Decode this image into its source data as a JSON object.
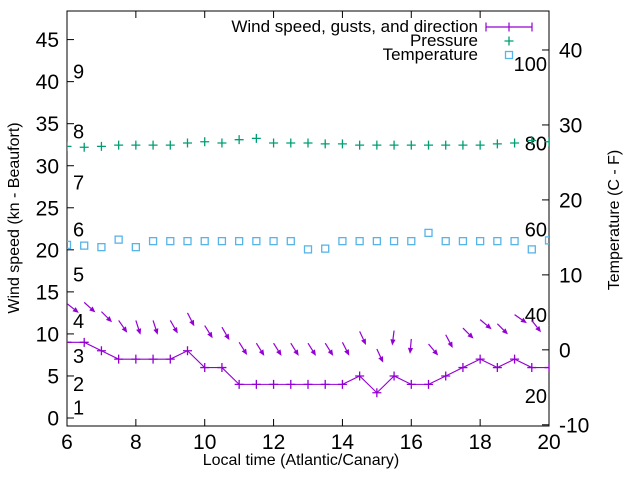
{
  "chart_data": {
    "type": "line",
    "title": "",
    "xlabel": "Local time (Atlantic/Canary)",
    "ylabel_left": "Wind speed (kn - Beaufort)",
    "ylabel_right": "Temperature (C - F)",
    "legend": {
      "position": "top-right-inside",
      "items": [
        "Wind speed, gusts, and direction",
        "Pressure",
        "Temperature"
      ],
      "marker_styles": [
        "errorbar",
        "plus",
        "open-square"
      ]
    },
    "colors": {
      "wind": "#9400d3",
      "pressure": "#009e73",
      "temperature": "#56b4e9",
      "axis": "#000000",
      "background": "#ffffff"
    },
    "axes": {
      "x_range": [
        6,
        20
      ],
      "x_ticks": [
        6,
        8,
        10,
        12,
        14,
        16,
        18,
        20
      ],
      "y_left_range": [
        -0.95,
        48.4
      ],
      "y_left_ticks": [
        0,
        5,
        10,
        15,
        20,
        25,
        30,
        35,
        40,
        45
      ],
      "y_right_range": [
        -10.16,
        45.2
      ],
      "y_right_ticks": [
        -10,
        0,
        10,
        20,
        30,
        40
      ],
      "grid": false
    },
    "x": [
      6,
      6.5,
      7,
      7.5,
      8,
      8.5,
      9,
      9.5,
      10,
      10.5,
      11,
      11.5,
      12,
      12.5,
      13,
      13.5,
      14,
      14.5,
      15,
      15.5,
      16,
      16.5,
      17,
      17.5,
      18,
      18.5,
      19,
      19.5,
      20
    ],
    "series": [
      {
        "name": "Wind speed, gusts, and direction",
        "axis": "left",
        "unit": "kn",
        "marker": "plus",
        "color_key": "wind",
        "values": [
          9,
          9,
          8,
          7,
          7,
          7,
          7,
          8,
          6,
          6,
          4,
          4,
          4,
          4,
          4,
          4,
          4,
          5,
          3,
          5,
          4,
          4,
          5,
          6,
          7,
          6,
          7,
          6,
          6
        ]
      },
      {
        "name": "Pressure",
        "axis": "left",
        "unit": "inner 20-100 scale (approx 80)",
        "marker": "plus",
        "color_key": "pressure",
        "values": [
          32.3,
          32.2,
          32.3,
          32.45,
          32.45,
          32.45,
          32.45,
          32.7,
          32.85,
          32.7,
          33.1,
          33.25,
          32.7,
          32.7,
          32.7,
          32.6,
          32.6,
          32.45,
          32.45,
          32.45,
          32.45,
          32.45,
          32.45,
          32.45,
          32.45,
          32.6,
          32.7,
          33.0,
          32.85
        ]
      },
      {
        "name": "Temperature",
        "axis": "right",
        "unit": "C",
        "marker": "open-square",
        "color_key": "temperature",
        "values": [
          14.0,
          13.9,
          13.7,
          14.7,
          13.7,
          14.5,
          14.5,
          14.5,
          14.5,
          14.5,
          14.5,
          14.5,
          14.5,
          14.5,
          13.4,
          13.5,
          14.5,
          14.5,
          14.5,
          14.5,
          14.5,
          15.6,
          14.5,
          14.5,
          14.5,
          14.5,
          14.5,
          13.4,
          14.6
        ]
      }
    ],
    "wind_arrows": {
      "note": "gust/direction vectors drawn above wind-speed line, values on left axis (kn)",
      "t": [
        6,
        6.5,
        7,
        7.5,
        8,
        8.5,
        9,
        9.5,
        10,
        10.5,
        11,
        11.5,
        12,
        12.5,
        13,
        13.5,
        14,
        14.5,
        15,
        15.5,
        16,
        16.5,
        17,
        17.5,
        18,
        18.5,
        19,
        19.5,
        20
      ],
      "tail_kn": [
        13.6,
        13.75,
        12.65,
        11.6,
        11.6,
        11.6,
        11.6,
        12.5,
        11.0,
        10.8,
        9.0,
        8.9,
        8.9,
        8.9,
        8.9,
        8.9,
        9.0,
        10.3,
        8.2,
        10.4,
        9.4,
        8.8,
        9.9,
        10.7,
        11.7,
        11.2,
        12.3,
        11.6,
        11.1
      ],
      "angle_deg": [
        38,
        42,
        45,
        55,
        72,
        72,
        60,
        63,
        58,
        60,
        58,
        58,
        58,
        58,
        58,
        58,
        63,
        65,
        65,
        97,
        95,
        50,
        62,
        45,
        40,
        45,
        35,
        52,
        55
      ]
    },
    "beaufort_scale_labels": [
      {
        "label": "1",
        "kn": 1.3
      },
      {
        "label": "2",
        "kn": 4.05
      },
      {
        "label": "3",
        "kn": 7.4
      },
      {
        "label": "4",
        "kn": 11.55
      },
      {
        "label": "5",
        "kn": 17.1
      },
      {
        "label": "6",
        "kn": 22.45
      },
      {
        "label": "7",
        "kn": 28.05
      },
      {
        "label": "8",
        "kn": 34.1
      },
      {
        "label": "9",
        "kn": 41.2
      }
    ],
    "right_inner_scale_labels": [
      {
        "label": "100",
        "kn": 42.1
      },
      {
        "label": "80",
        "kn": 32.65
      },
      {
        "label": "60",
        "kn": 22.45
      },
      {
        "label": "40",
        "kn": 12.25
      },
      {
        "label": "20",
        "kn": 2.65
      }
    ]
  }
}
